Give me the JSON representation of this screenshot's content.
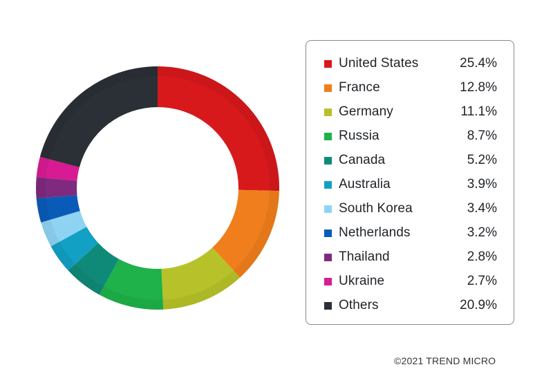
{
  "chart_data": {
    "type": "pie",
    "donut": true,
    "legend_position": "right",
    "title": "",
    "categories": [
      "United States",
      "France",
      "Germany",
      "Russia",
      "Canada",
      "Australia",
      "South Korea",
      "Netherlands",
      "Thailand",
      "Ukraine",
      "Others"
    ],
    "values": [
      25.4,
      12.8,
      11.1,
      8.7,
      5.2,
      3.9,
      3.4,
      3.2,
      2.8,
      2.7,
      20.9
    ],
    "labels": [
      "25.4%",
      "12.8%",
      "11.1%",
      "8.7%",
      "5.2%",
      "3.9%",
      "3.4%",
      "3.2%",
      "2.8%",
      "2.7%",
      "20.9%"
    ],
    "colors": [
      "#d7191c",
      "#f07e1c",
      "#b7c22a",
      "#1fb14a",
      "#108a78",
      "#12a0c4",
      "#8ed3f2",
      "#0a5bb8",
      "#7f2a7e",
      "#d81b93",
      "#2b2f36"
    ]
  },
  "footer": {
    "copyright": "©2021 TREND MICRO"
  }
}
